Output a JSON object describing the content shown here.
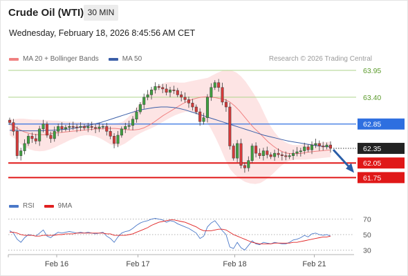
{
  "header": {
    "title": "Crude Oil (WTI)",
    "timeframe": "30 MIN",
    "datetime": "Wednesday, February 18, 2026 8:45:56 AM CET"
  },
  "legend_main": [
    {
      "label": "MA 20 + Bollinger Bands",
      "color": "#f08080"
    },
    {
      "label": "MA 50",
      "color": "#3b5fa8"
    }
  ],
  "credit": "Research © 2026 Trading Central",
  "legend_rsi": [
    {
      "label": "RSI",
      "color": "#4a78c8"
    },
    {
      "label": "9MA",
      "color": "#e02020"
    }
  ],
  "colors": {
    "bull": "#3fa040",
    "bear": "#d63a3a",
    "resistance_line": "#aed38a",
    "pivot_line": "#2e6fe0",
    "support_line": "#e01818",
    "current_price": "#222222",
    "bollinger_fill": "#fde1e1",
    "arrow": "#2a5ea8"
  },
  "chart_data": {
    "type": "candlestick",
    "instrument": "Crude Oil (WTI)",
    "interval": "30 MIN",
    "ylim": [
      61.6,
      64.05
    ],
    "x_ticks": [
      "Feb 16",
      "Feb 17",
      "Feb 18",
      "Feb 21"
    ],
    "levels": [
      {
        "value": 63.95,
        "label": "63.95",
        "kind": "resistance"
      },
      {
        "value": 63.4,
        "label": "63.40",
        "kind": "resistance"
      },
      {
        "value": 62.85,
        "label": "62.85",
        "kind": "pivot"
      },
      {
        "value": 62.05,
        "label": "62.05",
        "kind": "support"
      },
      {
        "value": 61.75,
        "label": "61.75",
        "kind": "support"
      }
    ],
    "current_price": {
      "value": 62.35,
      "label": "62.35"
    },
    "closes": [
      62.88,
      62.7,
      62.2,
      62.3,
      62.45,
      62.6,
      62.55,
      62.5,
      62.75,
      62.85,
      62.62,
      62.55,
      62.7,
      62.8,
      62.75,
      62.78,
      62.8,
      62.79,
      62.78,
      62.8,
      62.77,
      62.8,
      62.78,
      62.76,
      62.79,
      62.8,
      62.7,
      62.6,
      62.45,
      62.62,
      62.75,
      62.8,
      62.82,
      62.95,
      63.1,
      63.25,
      63.4,
      63.45,
      63.55,
      63.62,
      63.6,
      63.57,
      63.5,
      63.55,
      63.54,
      63.45,
      63.4,
      63.35,
      63.28,
      63.2,
      63.1,
      62.9,
      62.98,
      63.4,
      63.6,
      63.7,
      63.6,
      63.3,
      63.2,
      62.4,
      62.15,
      62.45,
      62.0,
      61.95,
      62.1,
      62.4,
      62.25,
      62.2,
      62.3,
      62.22,
      62.18,
      62.25,
      62.22,
      62.2,
      62.18,
      62.2,
      62.25,
      62.28,
      62.3,
      62.38,
      62.32,
      62.42,
      62.45,
      62.4,
      62.38,
      62.42,
      62.35
    ],
    "x_label_positions": [
      0.14,
      0.375,
      0.655,
      0.885
    ],
    "ma20": [
      62.85,
      62.8,
      62.74,
      62.69,
      62.66,
      62.64,
      62.63,
      62.63,
      62.64,
      62.66,
      62.67,
      62.68,
      62.69,
      62.7,
      62.71,
      62.72,
      62.73,
      62.74,
      62.75,
      62.75,
      62.76,
      62.76,
      62.76,
      62.75,
      62.74,
      62.73,
      62.73,
      62.74,
      62.77,
      62.82,
      62.88,
      62.95,
      63.02,
      63.08,
      63.14,
      63.2,
      63.26,
      63.31,
      63.35,
      63.38,
      63.4,
      63.41,
      63.4,
      63.39,
      63.37,
      63.35,
      63.3,
      63.22,
      63.12,
      63.0,
      62.88,
      62.77,
      62.68,
      62.58,
      62.48,
      62.4,
      62.33,
      62.28,
      62.25,
      62.24,
      62.24,
      62.25,
      62.27,
      62.28,
      62.29,
      62.3,
      62.31,
      62.32
    ],
    "ma50": [
      62.72,
      62.72,
      62.71,
      62.71,
      62.71,
      62.71,
      62.72,
      62.72,
      62.73,
      62.74,
      62.75,
      62.77,
      62.79,
      62.82,
      62.85,
      62.88,
      62.92,
      62.96,
      63.0,
      63.04,
      63.08,
      63.12,
      63.15,
      63.17,
      63.19,
      63.2,
      63.2,
      63.19,
      63.17,
      63.14,
      63.1,
      63.06,
      63.02,
      62.98,
      62.94,
      62.9,
      62.86,
      62.82,
      62.78,
      62.74,
      62.7,
      62.66,
      62.62,
      62.59,
      62.56,
      62.53,
      62.5,
      62.48,
      62.46,
      62.44,
      62.42,
      62.4,
      62.39,
      62.38
    ],
    "bb_upper": [
      62.95,
      62.95,
      62.96,
      62.96,
      62.95,
      62.94,
      62.94,
      62.93,
      62.93,
      62.92,
      62.92,
      62.91,
      62.9,
      62.9,
      62.89,
      62.89,
      62.88,
      62.88,
      62.87,
      62.87,
      62.86,
      62.86,
      62.86,
      62.87,
      62.9,
      62.98,
      63.08,
      63.2,
      63.32,
      63.44,
      63.55,
      63.62,
      63.66,
      63.7,
      63.71,
      63.71,
      63.7,
      63.7,
      63.72,
      63.74,
      63.76,
      63.78,
      63.8,
      63.85,
      63.9,
      63.94,
      63.96,
      63.95,
      63.91,
      63.83,
      63.72,
      63.58,
      63.43,
      63.26,
      63.05,
      62.85,
      62.7,
      62.58,
      62.5,
      62.45,
      62.42,
      62.42,
      62.43,
      62.44,
      62.45,
      62.46,
      62.47,
      62.48,
      62.49
    ],
    "bb_lower": [
      62.62,
      62.55,
      62.45,
      62.38,
      62.33,
      62.3,
      62.29,
      62.3,
      62.33,
      62.37,
      62.42,
      62.47,
      62.52,
      62.56,
      62.6,
      62.62,
      62.62,
      62.6,
      62.56,
      62.5,
      62.44,
      62.4,
      62.4,
      62.45,
      62.52,
      62.6,
      62.66,
      62.71,
      62.75,
      62.8,
      62.86,
      62.92,
      62.98,
      63.03,
      63.07,
      63.1,
      63.11,
      63.08,
      63.01,
      62.92,
      62.78,
      62.58,
      62.36,
      62.12,
      61.92,
      61.8,
      61.72,
      61.66,
      61.63,
      61.62,
      61.64,
      61.7,
      61.78,
      61.88,
      61.98,
      62.06,
      62.1,
      62.12,
      62.12,
      62.12,
      62.13,
      62.14,
      62.15,
      62.16,
      62.17
    ],
    "rsi": {
      "ylim": [
        25,
        75
      ],
      "levels": [
        70,
        50,
        30
      ],
      "rsi_values": [
        55,
        52,
        44,
        40,
        46,
        50,
        49,
        48,
        52,
        56,
        48,
        46,
        50,
        53,
        52,
        53,
        54,
        53,
        52,
        53,
        52,
        53,
        52,
        51,
        52,
        53,
        48,
        45,
        40,
        47,
        52,
        54,
        55,
        58,
        62,
        65,
        67,
        68,
        70,
        71,
        70,
        69,
        66,
        68,
        67,
        64,
        62,
        60,
        58,
        55,
        52,
        45,
        48,
        60,
        65,
        68,
        62,
        55,
        50,
        34,
        32,
        40,
        33,
        30,
        36,
        42,
        38,
        37,
        40,
        39,
        38,
        40,
        39,
        38,
        38,
        40,
        43,
        44,
        46,
        49,
        47,
        51,
        52,
        50,
        49,
        50,
        48
      ],
      "ma9_values": [
        53,
        53,
        52,
        50,
        49,
        49,
        49,
        48,
        48,
        49,
        49,
        49,
        49,
        50,
        50,
        51,
        51,
        51,
        52,
        52,
        52,
        52,
        52,
        52,
        52,
        52,
        51,
        51,
        49,
        49,
        49,
        49,
        50,
        51,
        53,
        55,
        57,
        59,
        62,
        64,
        66,
        67,
        68,
        69,
        69,
        68,
        67,
        66,
        64,
        62,
        60,
        57,
        55,
        55,
        55,
        56,
        57,
        57,
        56,
        53,
        50,
        48,
        46,
        44,
        42,
        40,
        39,
        38,
        38,
        38,
        38,
        39,
        39,
        39,
        39,
        39,
        40,
        40,
        41,
        42,
        43,
        44,
        45,
        46,
        47,
        47,
        48
      ]
    }
  }
}
